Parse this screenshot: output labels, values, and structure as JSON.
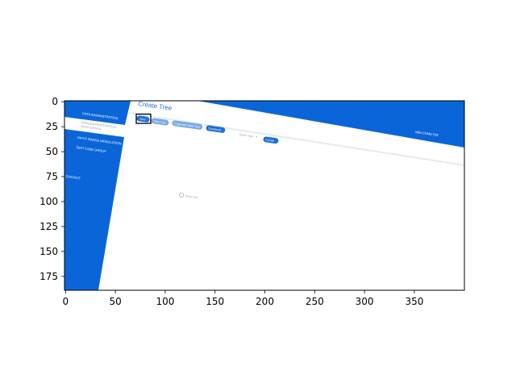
{
  "colors": {
    "brand_blue": "#0a66d8",
    "button_blue": "#1f6fd6",
    "light_button": "#7aa9e6",
    "background": "#ffffff",
    "divider": "#e6e9ee",
    "highlight_box": "#000000"
  },
  "axes": {
    "x_ticks": [
      "0",
      "50",
      "100",
      "150",
      "200",
      "250",
      "300",
      "350"
    ],
    "y_ticks": [
      "0",
      "25",
      "50",
      "75",
      "100",
      "125",
      "150",
      "175"
    ]
  },
  "app": {
    "page_title": "Create Tree",
    "welcome_text": "WELCOME TIM"
  },
  "sidebar": {
    "items": [
      {
        "label": "DATA ADMINISTRATION"
      },
      {
        "label": "DATA ADMINISTRATION"
      },
      {
        "label": "WITH GRAPH"
      },
      {
        "label": "INPUT RANGE MODULATION"
      },
      {
        "label": "TEST CASE GROUP"
      },
      {
        "label": "CONTACT"
      }
    ]
  },
  "toolbar": {
    "new_label": "New",
    "view_label": "View Tree",
    "copy_label": "Copy and Save Tree",
    "download_label": "Download",
    "select_tree_label": "Select Tree",
    "create_label": "Create"
  },
  "content": {
    "loading_text": "Saving Data"
  }
}
